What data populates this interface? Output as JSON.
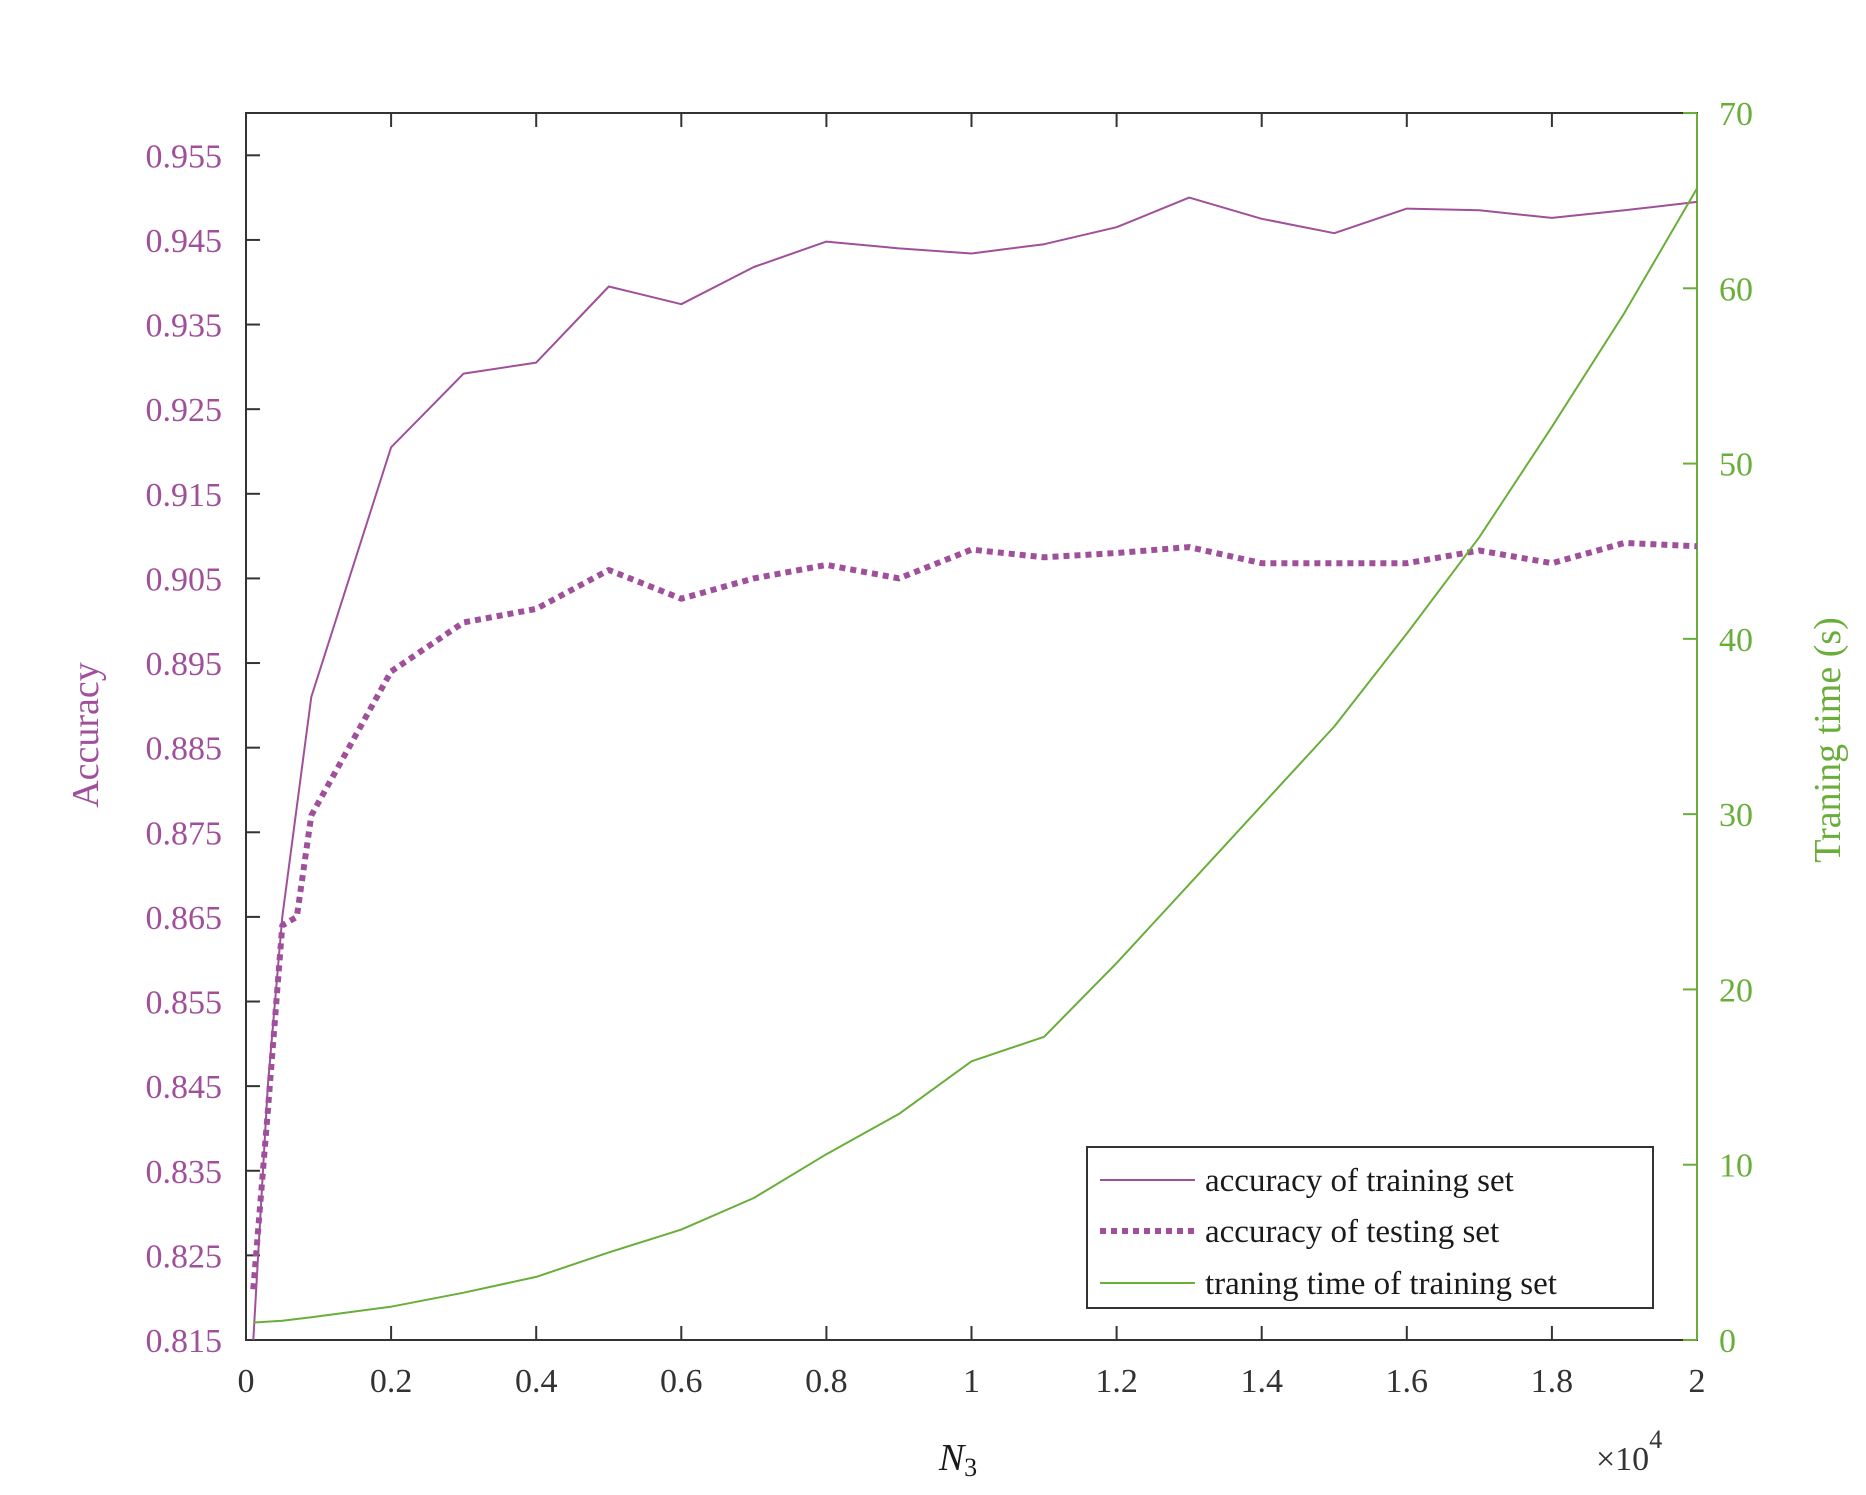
{
  "chart_data": {
    "type": "line",
    "xlabel_base": "N",
    "xlabel_sub": "3",
    "x_multiplier_prefix": "×10",
    "x_multiplier_exp": "4",
    "xlim": [
      0,
      2
    ],
    "x_ticks": [
      "0",
      "0.2",
      "0.4",
      "0.6",
      "0.8",
      "1",
      "1.2",
      "1.4",
      "1.6",
      "1.8",
      "2"
    ],
    "ylabel_left": "Accuracy",
    "ylim_left": [
      0.815,
      0.96
    ],
    "y_ticks_left": [
      "0.815",
      "0.825",
      "0.835",
      "0.845",
      "0.855",
      "0.865",
      "0.875",
      "0.885",
      "0.895",
      "0.905",
      "0.915",
      "0.925",
      "0.935",
      "0.945",
      "0.955"
    ],
    "ylabel_right": "Traning time (s)",
    "ylim_right": [
      0,
      70
    ],
    "y_ticks_right": [
      "0",
      "10",
      "20",
      "30",
      "40",
      "50",
      "60",
      "70"
    ],
    "grid": false,
    "legend_position": "bottom-right",
    "colors": {
      "accuracy": "#a0509a",
      "time": "#6aae3a",
      "axis": "#333333"
    },
    "series": [
      {
        "name": "accuracy of training set",
        "axis": "left",
        "style": "solid-thin",
        "x": [
          0.01,
          0.03,
          0.05,
          0.07,
          0.09,
          0.2,
          0.3,
          0.4,
          0.5,
          0.6,
          0.7,
          0.8,
          0.9,
          1.0,
          1.1,
          1.2,
          1.3,
          1.4,
          1.5,
          1.6,
          1.7,
          1.8,
          1.9,
          2.0
        ],
        "values": [
          0.815,
          0.845,
          0.865,
          0.878,
          0.891,
          0.9205,
          0.9292,
          0.9305,
          0.9395,
          0.9374,
          0.9418,
          0.9448,
          0.944,
          0.9434,
          0.9445,
          0.9465,
          0.95,
          0.9475,
          0.9458,
          0.9487,
          0.9485,
          0.9476,
          0.9485,
          0.9495
        ]
      },
      {
        "name": "accuracy of testing set",
        "axis": "left",
        "style": "dotted-thick",
        "x": [
          0.01,
          0.03,
          0.05,
          0.07,
          0.09,
          0.2,
          0.3,
          0.4,
          0.5,
          0.6,
          0.7,
          0.8,
          0.9,
          1.0,
          1.1,
          1.2,
          1.3,
          1.4,
          1.5,
          1.6,
          1.7,
          1.8,
          1.9,
          2.0
        ],
        "values": [
          0.821,
          0.842,
          0.864,
          0.865,
          0.877,
          0.894,
          0.8998,
          0.9014,
          0.906,
          0.9026,
          0.905,
          0.9066,
          0.905,
          0.9084,
          0.9075,
          0.908,
          0.9087,
          0.9068,
          0.9068,
          0.9068,
          0.9083,
          0.9068,
          0.9092,
          0.9088
        ]
      },
      {
        "name": "traning time of training set",
        "axis": "right",
        "style": "solid-thin",
        "x": [
          0.01,
          0.05,
          0.09,
          0.2,
          0.3,
          0.4,
          0.5,
          0.6,
          0.7,
          0.8,
          0.9,
          1.0,
          1.1,
          1.2,
          1.3,
          1.4,
          1.5,
          1.6,
          1.7,
          1.8,
          1.9,
          2.0
        ],
        "values": [
          1.0,
          1.1,
          1.3,
          1.9,
          2.7,
          3.6,
          5.0,
          6.3,
          8.1,
          10.6,
          12.9,
          15.9,
          17.3,
          21.5,
          26.0,
          30.5,
          35.0,
          40.3,
          45.8,
          52.1,
          58.6,
          65.7
        ]
      }
    ]
  }
}
